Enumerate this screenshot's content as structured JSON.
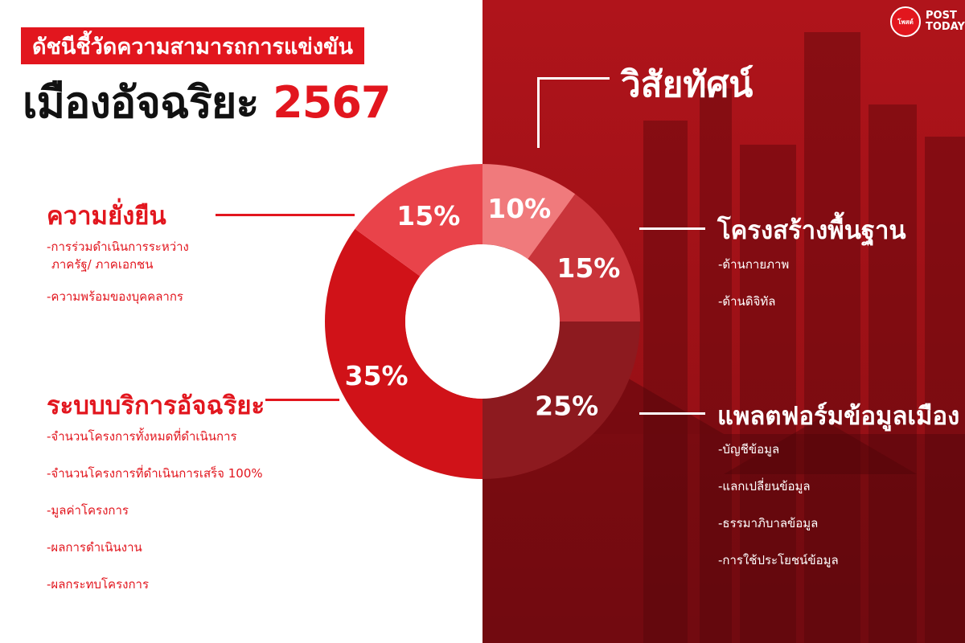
{
  "header": {
    "subtitle": "ดัชนีชี้วัดความสามารถการแข่งขัน",
    "title": "เมืองอัจฉริยะ",
    "year": "2567"
  },
  "logo": {
    "mark": "โพสต์",
    "line1": "POST",
    "line2": "TODAY"
  },
  "categories": {
    "vision": {
      "label": "วิสัยทัศน์"
    },
    "sustainability": {
      "label": "ความยั่งยืน",
      "items": [
        "-การร่วมดำเนินการระหว่าง",
        "ภาครัฐ/ ภาคเอกชน",
        "-ความพร้อมของบุคคลากร"
      ]
    },
    "smart_services": {
      "label": "ระบบบริการอัจฉริยะ",
      "items": [
        "-จำนวนโครงการทั้งหมดที่ดำเนินการ",
        "-จำนวนโครงการที่ดำเนินการเสร็จ 100%",
        "-มูลค่าโครงการ",
        "-ผลการดำเนินงาน",
        "-ผลกระทบโครงการ"
      ]
    },
    "infrastructure": {
      "label": "โครงสร้างพื้นฐาน",
      "items": [
        "-ด้านกายภาพ",
        "-ด้านดิจิทัล"
      ]
    },
    "data_platform": {
      "label": "แพลตฟอร์มข้อมูลเมือง",
      "items": [
        "-บัญชีข้อมูล",
        "-แลกเปลี่ยนข้อมูล",
        "-ธรรมาภิบาลข้อมูล",
        "-การใช้ประโยชน์ข้อมูล"
      ]
    }
  },
  "chart_data": {
    "type": "pie",
    "categories": [
      "วิสัยทัศน์",
      "โครงสร้างพื้นฐาน",
      "แพลตฟอร์มข้อมูลเมือง",
      "ระบบบริการอัจฉริยะ",
      "ความยั่งยืน"
    ],
    "values": [
      10,
      15,
      25,
      35,
      15
    ],
    "labels": [
      "10%",
      "15%",
      "25%",
      "35%",
      "15%"
    ],
    "colors": [
      "#f07a7c",
      "#c9343a",
      "#8d1a1f",
      "#d01218",
      "#e9434a"
    ],
    "donut": true
  }
}
